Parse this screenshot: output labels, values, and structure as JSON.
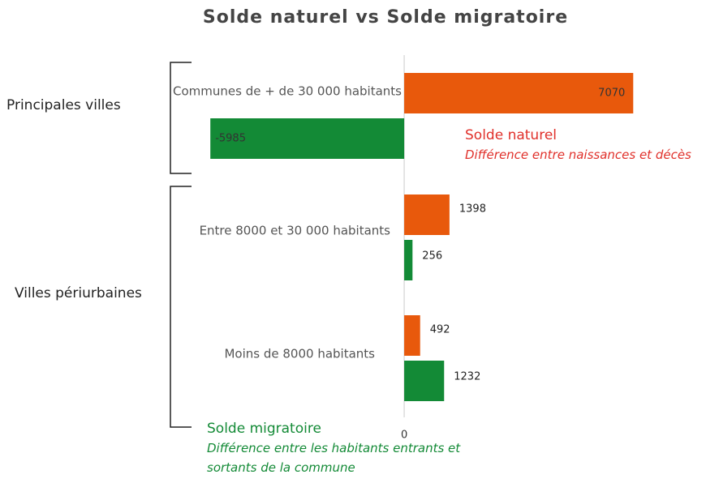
{
  "chart_data": {
    "type": "bar",
    "orientation": "horizontal",
    "title": "Solde naturel vs Solde migratoire",
    "categories": [
      "Communes de + de 30 000 habitants",
      "Entre 8000 et 30 000 habitants",
      "Moins de 8000 habitants"
    ],
    "series": [
      {
        "name": "Solde naturel",
        "description": "Différence entre naissances et décès",
        "color": "#e8590c",
        "values": [
          7070,
          1398,
          492
        ]
      },
      {
        "name": "Solde migratoire",
        "description": "Différence entre les habitants entrants et sortants de la commune",
        "color": "#138a36",
        "values": [
          -5985,
          256,
          1232
        ]
      }
    ],
    "groups": [
      "Principales villes",
      "Villes périurbaines"
    ],
    "xlim": [
      -6000,
      8000
    ],
    "xticks": [
      0
    ]
  }
}
